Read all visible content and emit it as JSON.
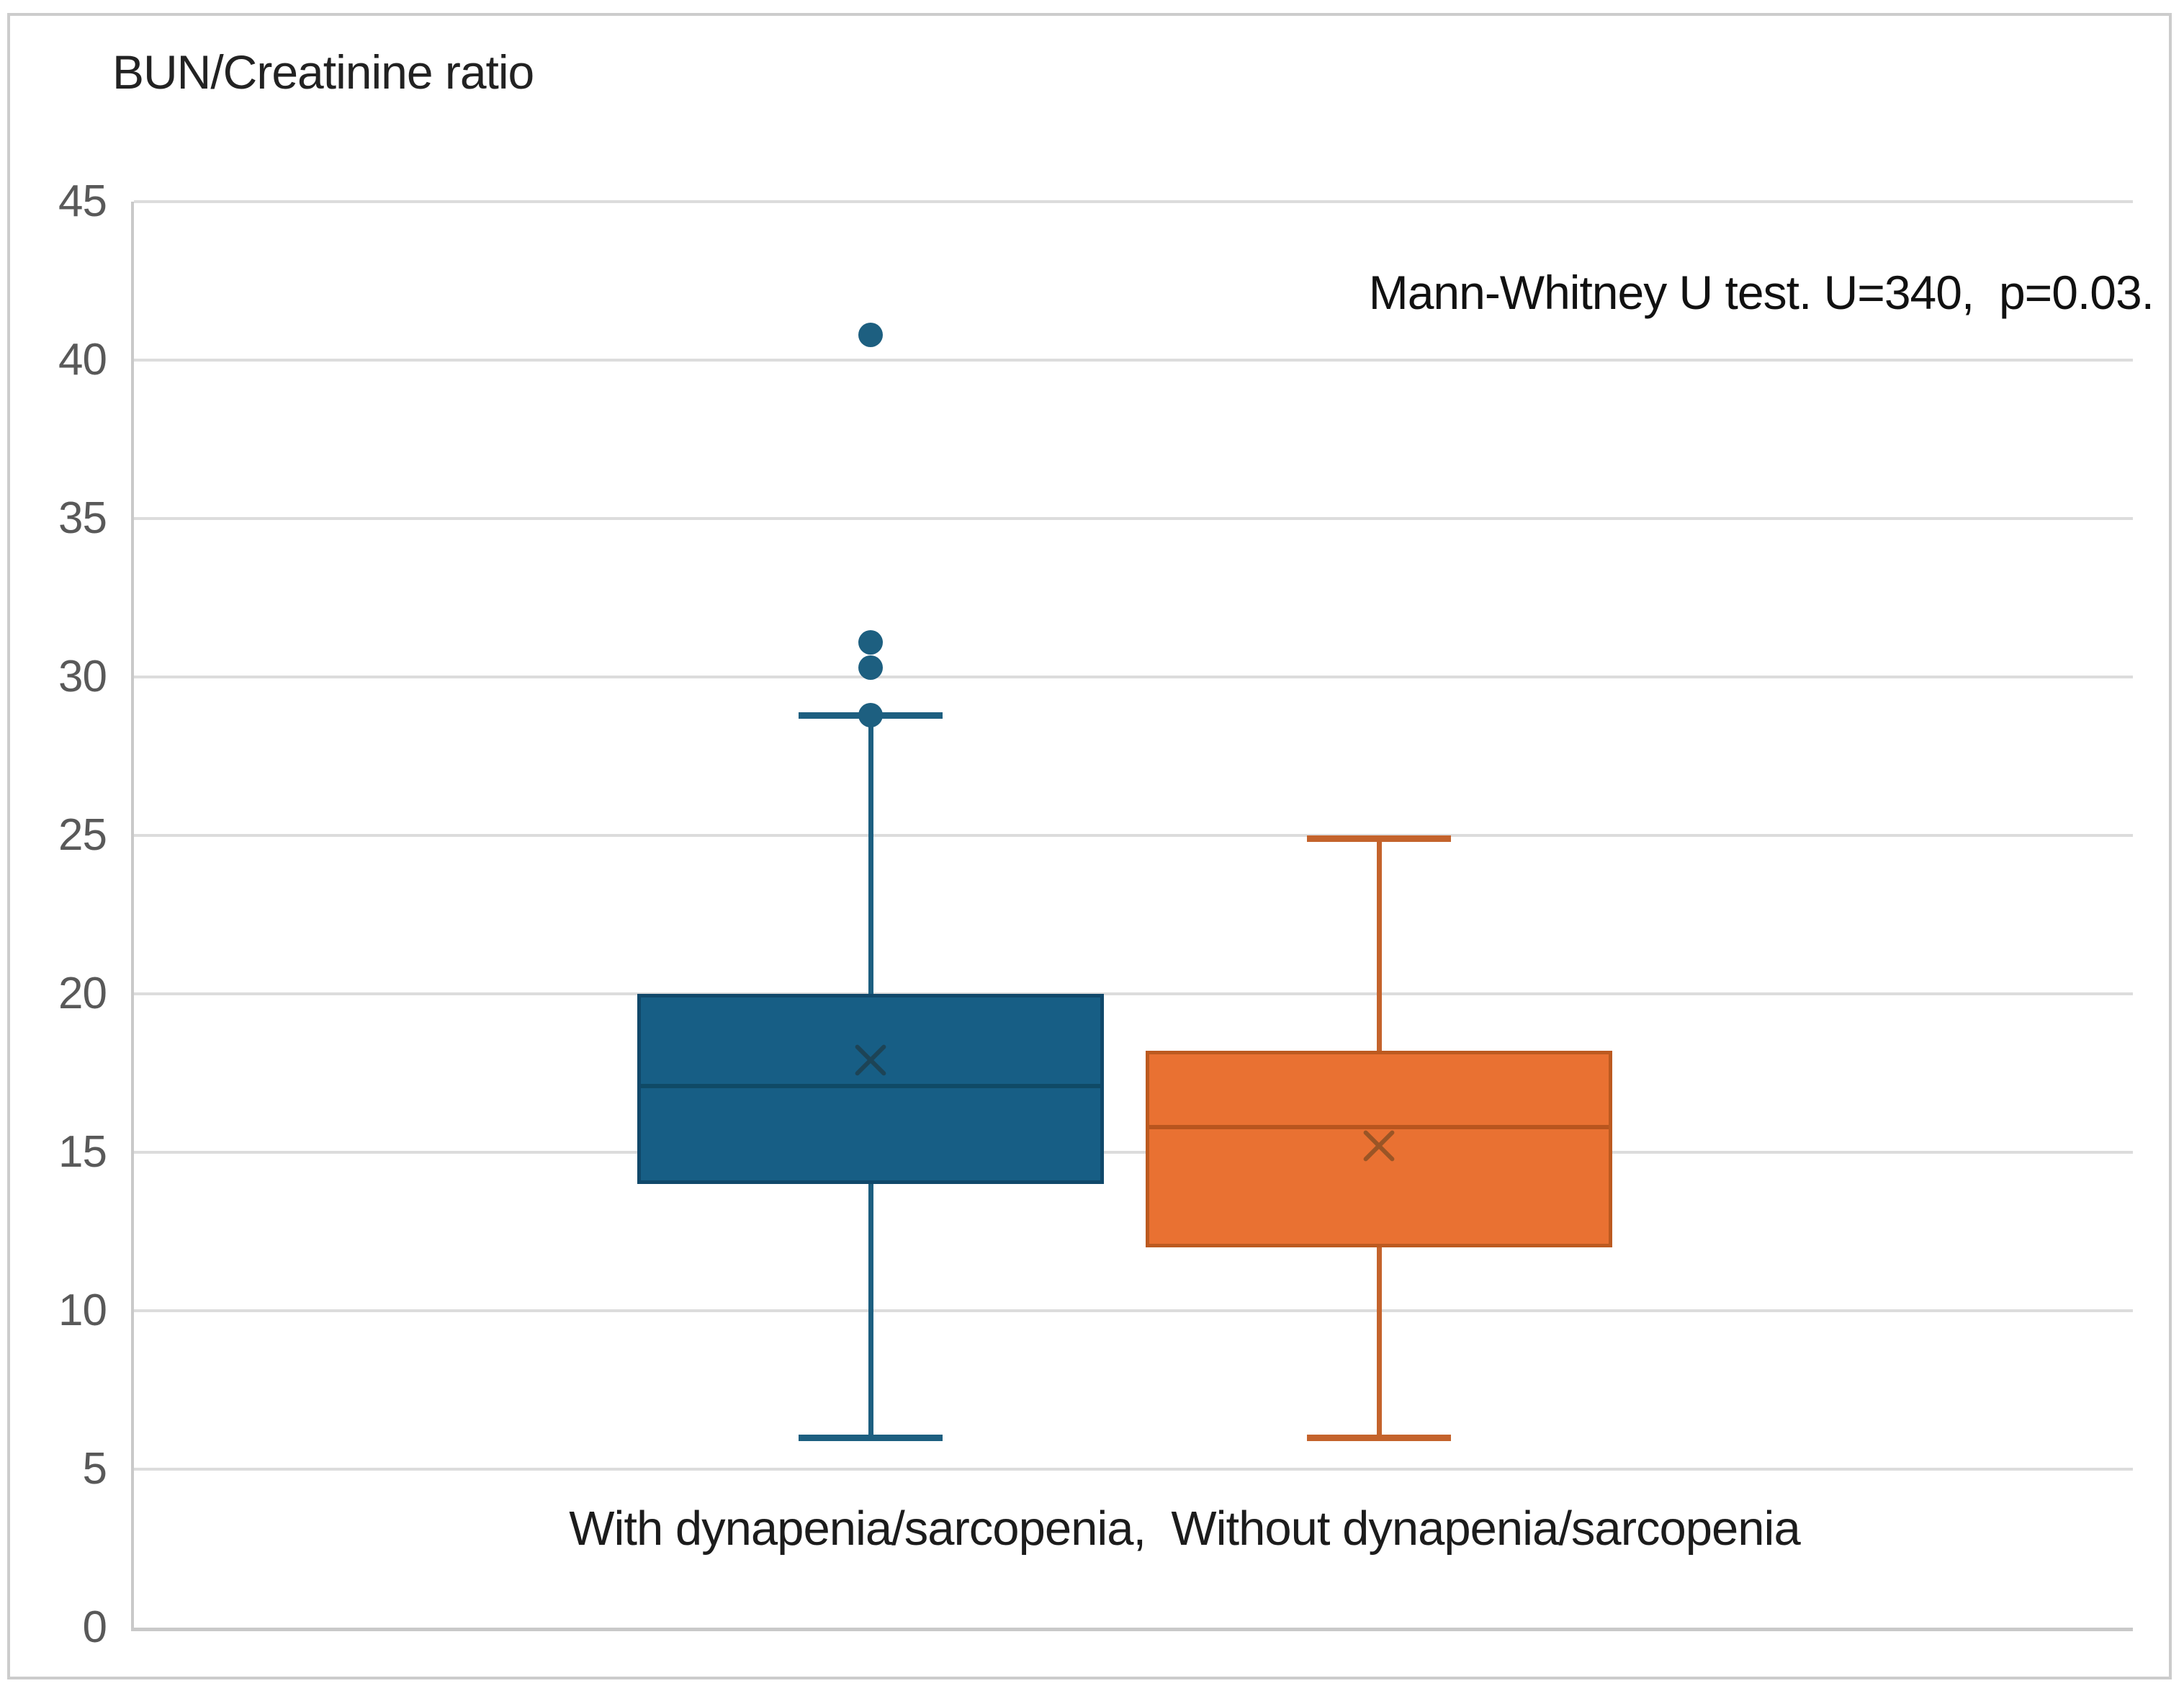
{
  "figure": {
    "title": "BUN/Creatinine ratio",
    "annotation_display": "Mann-Whitney U test. U=340,  p=0.03.",
    "x_axis_label_display": "With dynapenia/sarcopenia,  Without dynapenia/sarcopenia"
  },
  "chart_data": {
    "type": "boxplot",
    "title": "BUN/Creatinine ratio",
    "annotation": "Mann-Whitney U test. U=340, p=0.03.",
    "stats_test": {
      "test": "Mann-Whitney U test",
      "U": 340,
      "p": 0.03
    },
    "categories": [
      "With dynapenia/sarcopenia",
      "Without dynapenia/sarcopenia"
    ],
    "ylabel": "BUN/Creatinine ratio",
    "ylim": [
      0,
      45
    ],
    "y_ticks": [
      0,
      5,
      10,
      15,
      20,
      25,
      30,
      35,
      40,
      45
    ],
    "grid": true,
    "legend": "none",
    "series": [
      {
        "name": "With dynapenia/sarcopenia",
        "whisker_low": 6.0,
        "q1": 14.0,
        "median": 17.1,
        "q3": 20.0,
        "whisker_high": 28.8,
        "mean": 17.9,
        "outliers": [
          28.8,
          30.3,
          31.1,
          40.8
        ],
        "fill_color": "#175E85",
        "border_color": "#10486A",
        "line_color": "#1D5F80",
        "median_color": "#0F4A66",
        "mean_color": "#1D4456"
      },
      {
        "name": "Without dynapenia/sarcopenia",
        "whisker_low": 6.0,
        "q1": 12.0,
        "median": 15.8,
        "q3": 18.2,
        "whisker_high": 24.9,
        "mean": 15.2,
        "outliers": [],
        "fill_color": "#E97132",
        "border_color": "#BC5A20",
        "line_color": "#C4632C",
        "median_color": "#B8551E",
        "mean_color": "#9A5526"
      }
    ]
  }
}
